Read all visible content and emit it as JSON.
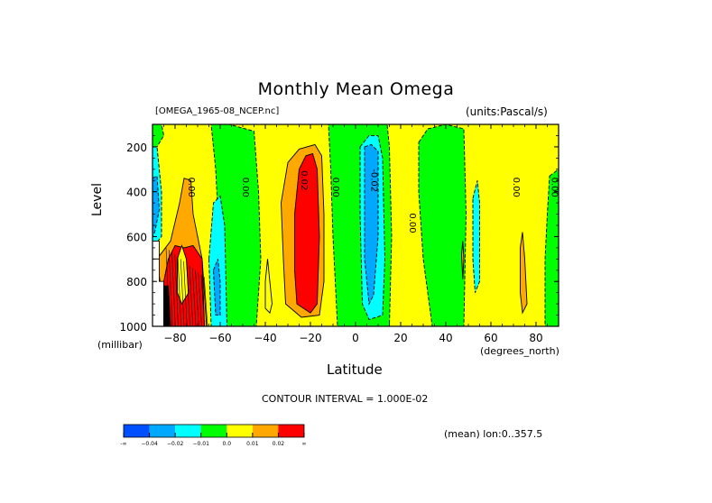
{
  "chart_data": {
    "type": "heatmap",
    "subtype": "filled-contour",
    "title": "Monthly Mean Omega",
    "file_label": "[OMEGA_1965-08_NCEP.nc]",
    "units_label": "(units:Pascal/s)",
    "xlabel": "Latitude",
    "xunits": "(degrees_north)",
    "ylabel": "Level",
    "yunits": "(millibar)",
    "xlim": [
      -90,
      90
    ],
    "ylim": [
      1000,
      100
    ],
    "y_axis_inverted": true,
    "x_ticks": [
      -80,
      -60,
      -40,
      -20,
      0,
      20,
      40,
      60,
      80
    ],
    "x_tick_labels": [
      "−80",
      "−60",
      "−40",
      "−20",
      "0",
      "20",
      "40",
      "60",
      "80"
    ],
    "y_ticks": [
      200,
      400,
      600,
      800,
      1000
    ],
    "y_tick_labels": [
      "200",
      "400",
      "600",
      "800",
      "1000"
    ],
    "contour_interval_text": "CONTOUR INTERVAL = 1.000E-02",
    "contour_interval": 0.01,
    "footer_text": "(mean) lon:0..357.5",
    "colorbar": {
      "bins": [
        {
          "label_low": "-∞",
          "color": "#0050ff"
        },
        {
          "label_low": "−0.04",
          "color": "#00a8ff"
        },
        {
          "label_low": "−0.02",
          "color": "#00ffff"
        },
        {
          "label_low": "−0.01",
          "color": "#00ff00"
        },
        {
          "label_low": "0.0",
          "color": "#ffff00"
        },
        {
          "label_low": "0.01",
          "color": "#ffa800"
        },
        {
          "label_low": "0.02",
          "color": "#ff0000"
        }
      ],
      "tick_labels": [
        "-∞",
        "−0.04",
        "−0.02",
        "−0.01",
        "0.0",
        "0.01",
        "0.02",
        "∞"
      ]
    },
    "contour_labels": [
      {
        "text": "0.00",
        "lat": -74,
        "lev": 380
      },
      {
        "text": "0.00",
        "lat": -50,
        "lev": 380
      },
      {
        "text": "0.02",
        "lat": -24,
        "lev": 350
      },
      {
        "text": "0.00",
        "lat": -10,
        "lev": 380
      },
      {
        "text": "-0.02",
        "lat": 7,
        "lev": 350
      },
      {
        "text": "0.00",
        "lat": 24,
        "lev": 540
      },
      {
        "text": "0.00",
        "lat": 70,
        "lev": 380
      },
      {
        "text": "0.00",
        "lat": 87,
        "lev": 380
      }
    ],
    "background_level": "0.0",
    "regions": [
      {
        "level": "-0.01",
        "note": "green band 55S-45S",
        "poly": [
          [
            -64,
            100
          ],
          [
            -56,
            100
          ],
          [
            -45,
            130
          ],
          [
            -43,
            400
          ],
          [
            -42,
            700
          ],
          [
            -44,
            1000
          ],
          [
            -62,
            1000
          ],
          [
            -60,
            700
          ],
          [
            -62,
            300
          ]
        ]
      },
      {
        "level": "-0.01",
        "note": "green equatorial band",
        "poly": [
          [
            -12,
            100
          ],
          [
            14,
            100
          ],
          [
            15,
            200
          ],
          [
            16,
            600
          ],
          [
            15,
            1000
          ],
          [
            -8,
            1000
          ],
          [
            -10,
            600
          ],
          [
            -11,
            300
          ]
        ]
      },
      {
        "level": "-0.01",
        "note": "green band 30N-45N",
        "poly": [
          [
            28,
            180
          ],
          [
            32,
            120
          ],
          [
            40,
            100
          ],
          [
            48,
            120
          ],
          [
            49,
            500
          ],
          [
            48,
            1000
          ],
          [
            34,
            1000
          ],
          [
            30,
            700
          ],
          [
            28,
            400
          ]
        ]
      },
      {
        "level": "-0.01",
        "note": "green band 85N-90N",
        "poly": [
          [
            86,
            330
          ],
          [
            90,
            300
          ],
          [
            90,
            1000
          ],
          [
            84,
            1000
          ],
          [
            84,
            700
          ],
          [
            85,
            500
          ]
        ]
      },
      {
        "level": "-0.01",
        "note": "green sliver 90S",
        "poly": [
          [
            -90,
            100
          ],
          [
            -86,
            100
          ],
          [
            -85,
            150
          ],
          [
            -88,
            200
          ],
          [
            -90,
            200
          ]
        ]
      },
      {
        "level": "-0.01",
        "note": "green sliver 75S",
        "poly": [
          [
            -76,
            700
          ],
          [
            -75,
            620
          ],
          [
            -74,
            700
          ],
          [
            -74,
            850
          ],
          [
            -75,
            900
          ],
          [
            -76,
            850
          ]
        ]
      },
      {
        "level": "-0.02",
        "note": "cyan 90S",
        "poly": [
          [
            -90,
            200
          ],
          [
            -88,
            200
          ],
          [
            -86,
            400
          ],
          [
            -86,
            600
          ],
          [
            -90,
            650
          ]
        ]
      },
      {
        "level": "-0.02",
        "note": "cyan 60S",
        "poly": [
          [
            -65,
            700
          ],
          [
            -63,
            450
          ],
          [
            -60,
            420
          ],
          [
            -58,
            550
          ],
          [
            -57,
            1000
          ],
          [
            -64,
            1000
          ]
        ]
      },
      {
        "level": "-0.02",
        "note": "cyan equatorial",
        "poly": [
          [
            2,
            200
          ],
          [
            6,
            150
          ],
          [
            10,
            150
          ],
          [
            12,
            250
          ],
          [
            13,
            700
          ],
          [
            12,
            950
          ],
          [
            6,
            970
          ],
          [
            3,
            900
          ],
          [
            2,
            500
          ]
        ]
      },
      {
        "level": "-0.02",
        "note": "cyan 55N",
        "poly": [
          [
            52,
            430
          ],
          [
            54,
            350
          ],
          [
            55,
            450
          ],
          [
            55,
            800
          ],
          [
            53,
            850
          ],
          [
            52,
            700
          ]
        ]
      },
      {
        "level": "-0.04",
        "note": "blue 90S",
        "poly": [
          [
            -90,
            340
          ],
          [
            -88,
            330
          ],
          [
            -87,
            480
          ],
          [
            -89,
            580
          ],
          [
            -90,
            600
          ]
        ]
      },
      {
        "level": "-0.04",
        "note": "blue 60S",
        "poly": [
          [
            -63,
            750
          ],
          [
            -61,
            700
          ],
          [
            -60,
            800
          ],
          [
            -60,
            950
          ],
          [
            -62,
            950
          ]
        ]
      },
      {
        "level": "-0.04",
        "note": "blue equatorial",
        "poly": [
          [
            4,
            200
          ],
          [
            7,
            190
          ],
          [
            10,
            220
          ],
          [
            10,
            600
          ],
          [
            8,
            860
          ],
          [
            6,
            900
          ],
          [
            4,
            700
          ]
        ]
      },
      {
        "level": "0.01",
        "note": "orange 75S column",
        "poly": [
          [
            -78,
            450
          ],
          [
            -76,
            340
          ],
          [
            -73,
            350
          ],
          [
            -72,
            500
          ],
          [
            -70,
            600
          ],
          [
            -68,
            700
          ],
          [
            -66,
            1000
          ],
          [
            -84,
            1000
          ],
          [
            -88,
            700
          ],
          [
            -82,
            620
          ]
        ]
      },
      {
        "level": "0.01",
        "note": "orange 25S",
        "poly": [
          [
            -33,
            450
          ],
          [
            -30,
            270
          ],
          [
            -25,
            210
          ],
          [
            -18,
            190
          ],
          [
            -15,
            240
          ],
          [
            -14,
            500
          ],
          [
            -14,
            800
          ],
          [
            -16,
            950
          ],
          [
            -24,
            960
          ],
          [
            -31,
            900
          ],
          [
            -32,
            700
          ]
        ]
      },
      {
        "level": "0.01",
        "note": "orange 45N sliver",
        "poly": [
          [
            47,
            680
          ],
          [
            47.5,
            620
          ],
          [
            48,
            700
          ],
          [
            47.5,
            790
          ]
        ]
      },
      {
        "level": "0.01",
        "note": "orange 77N",
        "poly": [
          [
            73,
            650
          ],
          [
            74,
            580
          ],
          [
            75,
            700
          ],
          [
            76,
            900
          ],
          [
            74,
            940
          ],
          [
            73,
            850
          ]
        ]
      },
      {
        "level": "0.02",
        "note": "red 75S lower",
        "poly": [
          [
            -83,
            700
          ],
          [
            -80,
            640
          ],
          [
            -76,
            650
          ],
          [
            -72,
            640
          ],
          [
            -68,
            700
          ],
          [
            -67,
            1000
          ],
          [
            -85,
            1000
          ],
          [
            -86,
            850
          ]
        ]
      },
      {
        "level": "0.02",
        "note": "red 20S",
        "poly": [
          [
            -27,
            500
          ],
          [
            -25,
            300
          ],
          [
            -22,
            240
          ],
          [
            -19,
            230
          ],
          [
            -17,
            300
          ],
          [
            -16,
            600
          ],
          [
            -17,
            900
          ],
          [
            -20,
            940
          ],
          [
            -26,
            900
          ],
          [
            -27,
            750
          ]
        ]
      },
      {
        "level": "0.0",
        "note": "yellow inside green 30S",
        "poly": [
          [
            -40,
            800
          ],
          [
            -39,
            700
          ],
          [
            -37,
            900
          ],
          [
            -38,
            940
          ],
          [
            -40,
            920
          ]
        ]
      },
      {
        "level": "0.0",
        "note": "yellow inside orange 75S",
        "poly": [
          [
            -79,
            700
          ],
          [
            -77,
            640
          ],
          [
            -75,
            700
          ],
          [
            -74,
            850
          ],
          [
            -77,
            900
          ],
          [
            -79,
            850
          ]
        ]
      },
      {
        "level": "missing",
        "note": "white missing region",
        "poly": [
          [
            -90,
            620
          ],
          [
            -87,
            620
          ],
          [
            -87,
            700
          ],
          [
            -90,
            700
          ]
        ]
      },
      {
        "level": "missing",
        "note": "white missing lower",
        "poly": [
          [
            -90,
            700
          ],
          [
            -87,
            700
          ],
          [
            -87,
            800
          ],
          [
            -85,
            800
          ],
          [
            -85,
            1000
          ],
          [
            -90,
            1000
          ]
        ]
      },
      {
        "level": "below",
        "note": "black lines region",
        "poly": [
          [
            -85,
            820
          ],
          [
            -83,
            820
          ],
          [
            -82,
            1000
          ],
          [
            -85,
            1000
          ]
        ]
      }
    ]
  }
}
